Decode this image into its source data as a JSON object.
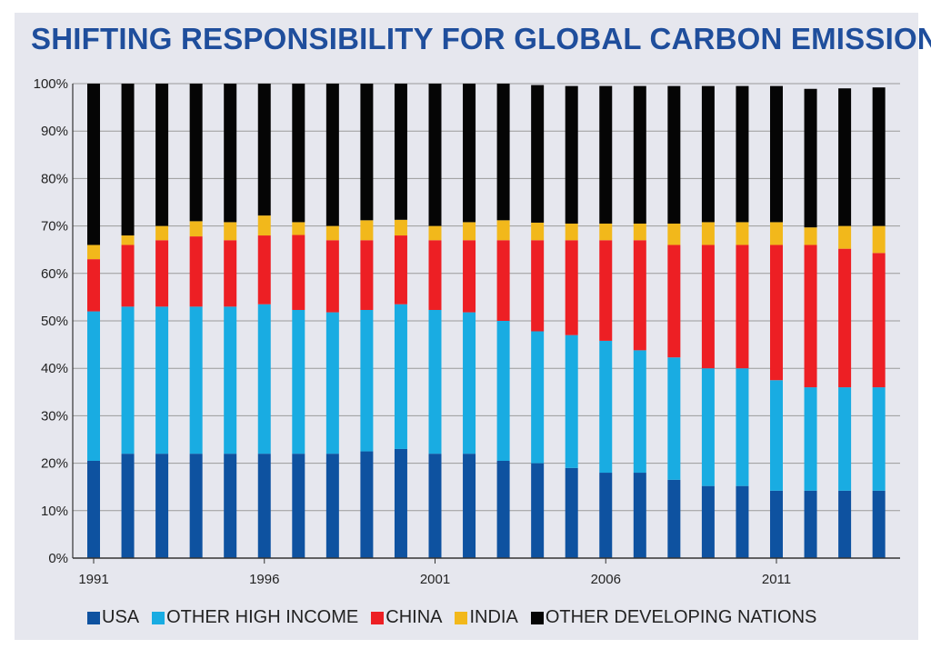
{
  "title": "SHIFTING RESPONSIBILITY FOR GLOBAL CARBON EMISSIONS",
  "chart_data": {
    "type": "bar",
    "stacked": true,
    "title": "SHIFTING RESPONSIBILITY FOR GLOBAL CARBON EMISSIONS",
    "xlabel": "",
    "ylabel": "",
    "ylim": [
      0,
      100
    ],
    "grid": true,
    "legend_position": "bottom",
    "y_ticks": [
      "0%",
      "10%",
      "20%",
      "30%",
      "40%",
      "50%",
      "60%",
      "70%",
      "80%",
      "90%",
      "100%"
    ],
    "x_tick_labels": [
      "1991",
      "1996",
      "2001",
      "2006",
      "2011"
    ],
    "categories": [
      "1991",
      "1992",
      "1993",
      "1994",
      "1995",
      "1996",
      "1997",
      "1998",
      "1999",
      "2000",
      "2001",
      "2002",
      "2003",
      "2004",
      "2005",
      "2006",
      "2007",
      "2008",
      "2009",
      "2010",
      "2011",
      "2012",
      "2013",
      "2014"
    ],
    "series": [
      {
        "name": "USA",
        "color": "#0e52a0",
        "values": [
          20.5,
          22,
          22,
          22,
          22,
          22,
          22,
          22,
          22.5,
          23,
          22,
          22,
          20.5,
          20,
          19,
          18,
          18,
          16.5,
          15.2,
          15.2,
          14.2,
          14.2,
          14.2,
          14.2
        ]
      },
      {
        "name": "OTHER HIGH INCOME",
        "color": "#19ace2",
        "values": [
          31.5,
          31,
          31,
          31,
          31,
          31.5,
          30.3,
          29.8,
          29.8,
          30.5,
          30.3,
          29.8,
          29.5,
          27.8,
          28,
          27.8,
          25.8,
          25.8,
          24.8,
          24.8,
          23.3,
          21.8,
          21.8,
          21.8
        ]
      },
      {
        "name": "CHINA",
        "color": "#ed1f24",
        "values": [
          11,
          13,
          14,
          14.8,
          14,
          14.5,
          15.8,
          15.2,
          14.7,
          14.5,
          14.7,
          15.2,
          17,
          19.2,
          20,
          21.2,
          23.2,
          23.7,
          26,
          26,
          28.5,
          30,
          29.2,
          28.3
        ]
      },
      {
        "name": "INDIA",
        "color": "#f2b81b",
        "values": [
          3,
          2,
          3,
          3.2,
          3.8,
          4.2,
          2.7,
          3,
          4.2,
          3.3,
          3,
          3.8,
          4.2,
          3.7,
          3.5,
          3.5,
          3.5,
          4.5,
          4.8,
          4.8,
          4.8,
          3.7,
          4.8,
          5.7
        ]
      },
      {
        "name": "OTHER DEVELOPING NATIONS",
        "color": "#050505",
        "values": [
          34,
          32,
          30,
          29,
          29.2,
          27.8,
          29.2,
          30,
          28.8,
          28.7,
          30,
          29.2,
          28.8,
          29,
          29,
          29,
          29,
          29,
          28.7,
          28.7,
          28.7,
          29.2,
          29,
          29.2
        ]
      }
    ]
  }
}
